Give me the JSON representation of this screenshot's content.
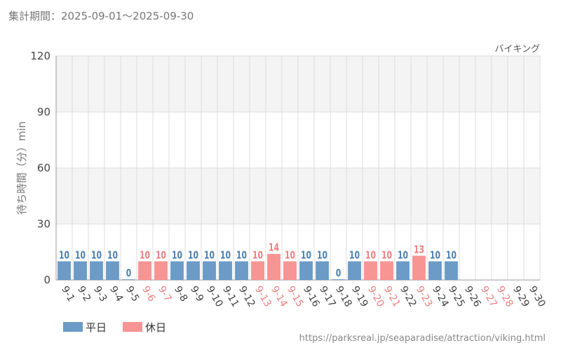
{
  "header": {
    "period": "集計期間：2025-09-01～2025-09-30",
    "attraction": "バイキング",
    "source_url": "https://parksreal.jp/seaparadise/attraction/viking.html"
  },
  "colors": {
    "weekday": "#6b9bc6",
    "weekday_text": "#4a7fb0",
    "holiday": "#f79494",
    "holiday_text": "#ee7f7f",
    "band": "#f4f4f4",
    "grid": "#dddddd",
    "axis_text": "#444444",
    "muted_text": "#777777"
  },
  "chart_data": {
    "type": "bar",
    "ylabel": "待ち時間（分）min",
    "ylim": [
      0,
      120
    ],
    "yticks": [
      0,
      30,
      60,
      90,
      120
    ],
    "categories": [
      "9-1",
      "9-2",
      "9-3",
      "9-4",
      "9-5",
      "9-6",
      "9-7",
      "9-8",
      "9-9",
      "9-10",
      "9-11",
      "9-12",
      "9-13",
      "9-14",
      "9-15",
      "9-16",
      "9-17",
      "9-18",
      "9-19",
      "9-20",
      "9-21",
      "9-22",
      "9-23",
      "9-24",
      "9-25",
      "9-26",
      "9-27",
      "9-28",
      "9-29",
      "9-30"
    ],
    "values": [
      10,
      10,
      10,
      10,
      0,
      10,
      10,
      10,
      10,
      10,
      10,
      10,
      10,
      14,
      10,
      10,
      10,
      0,
      10,
      10,
      10,
      10,
      13,
      10,
      10,
      null,
      null,
      null,
      null,
      null
    ],
    "day_type": [
      "weekday",
      "weekday",
      "weekday",
      "weekday",
      "weekday",
      "holiday",
      "holiday",
      "weekday",
      "weekday",
      "weekday",
      "weekday",
      "weekday",
      "holiday",
      "holiday",
      "holiday",
      "weekday",
      "weekday",
      "weekday",
      "weekday",
      "holiday",
      "holiday",
      "weekday",
      "holiday",
      "weekday",
      "weekday",
      "weekday",
      "holiday",
      "holiday",
      "weekday",
      "weekday"
    ],
    "legend": [
      {
        "key": "weekday",
        "label": "平日"
      },
      {
        "key": "holiday",
        "label": "休日"
      }
    ],
    "legend_position": "bottom-left",
    "grid": true
  }
}
